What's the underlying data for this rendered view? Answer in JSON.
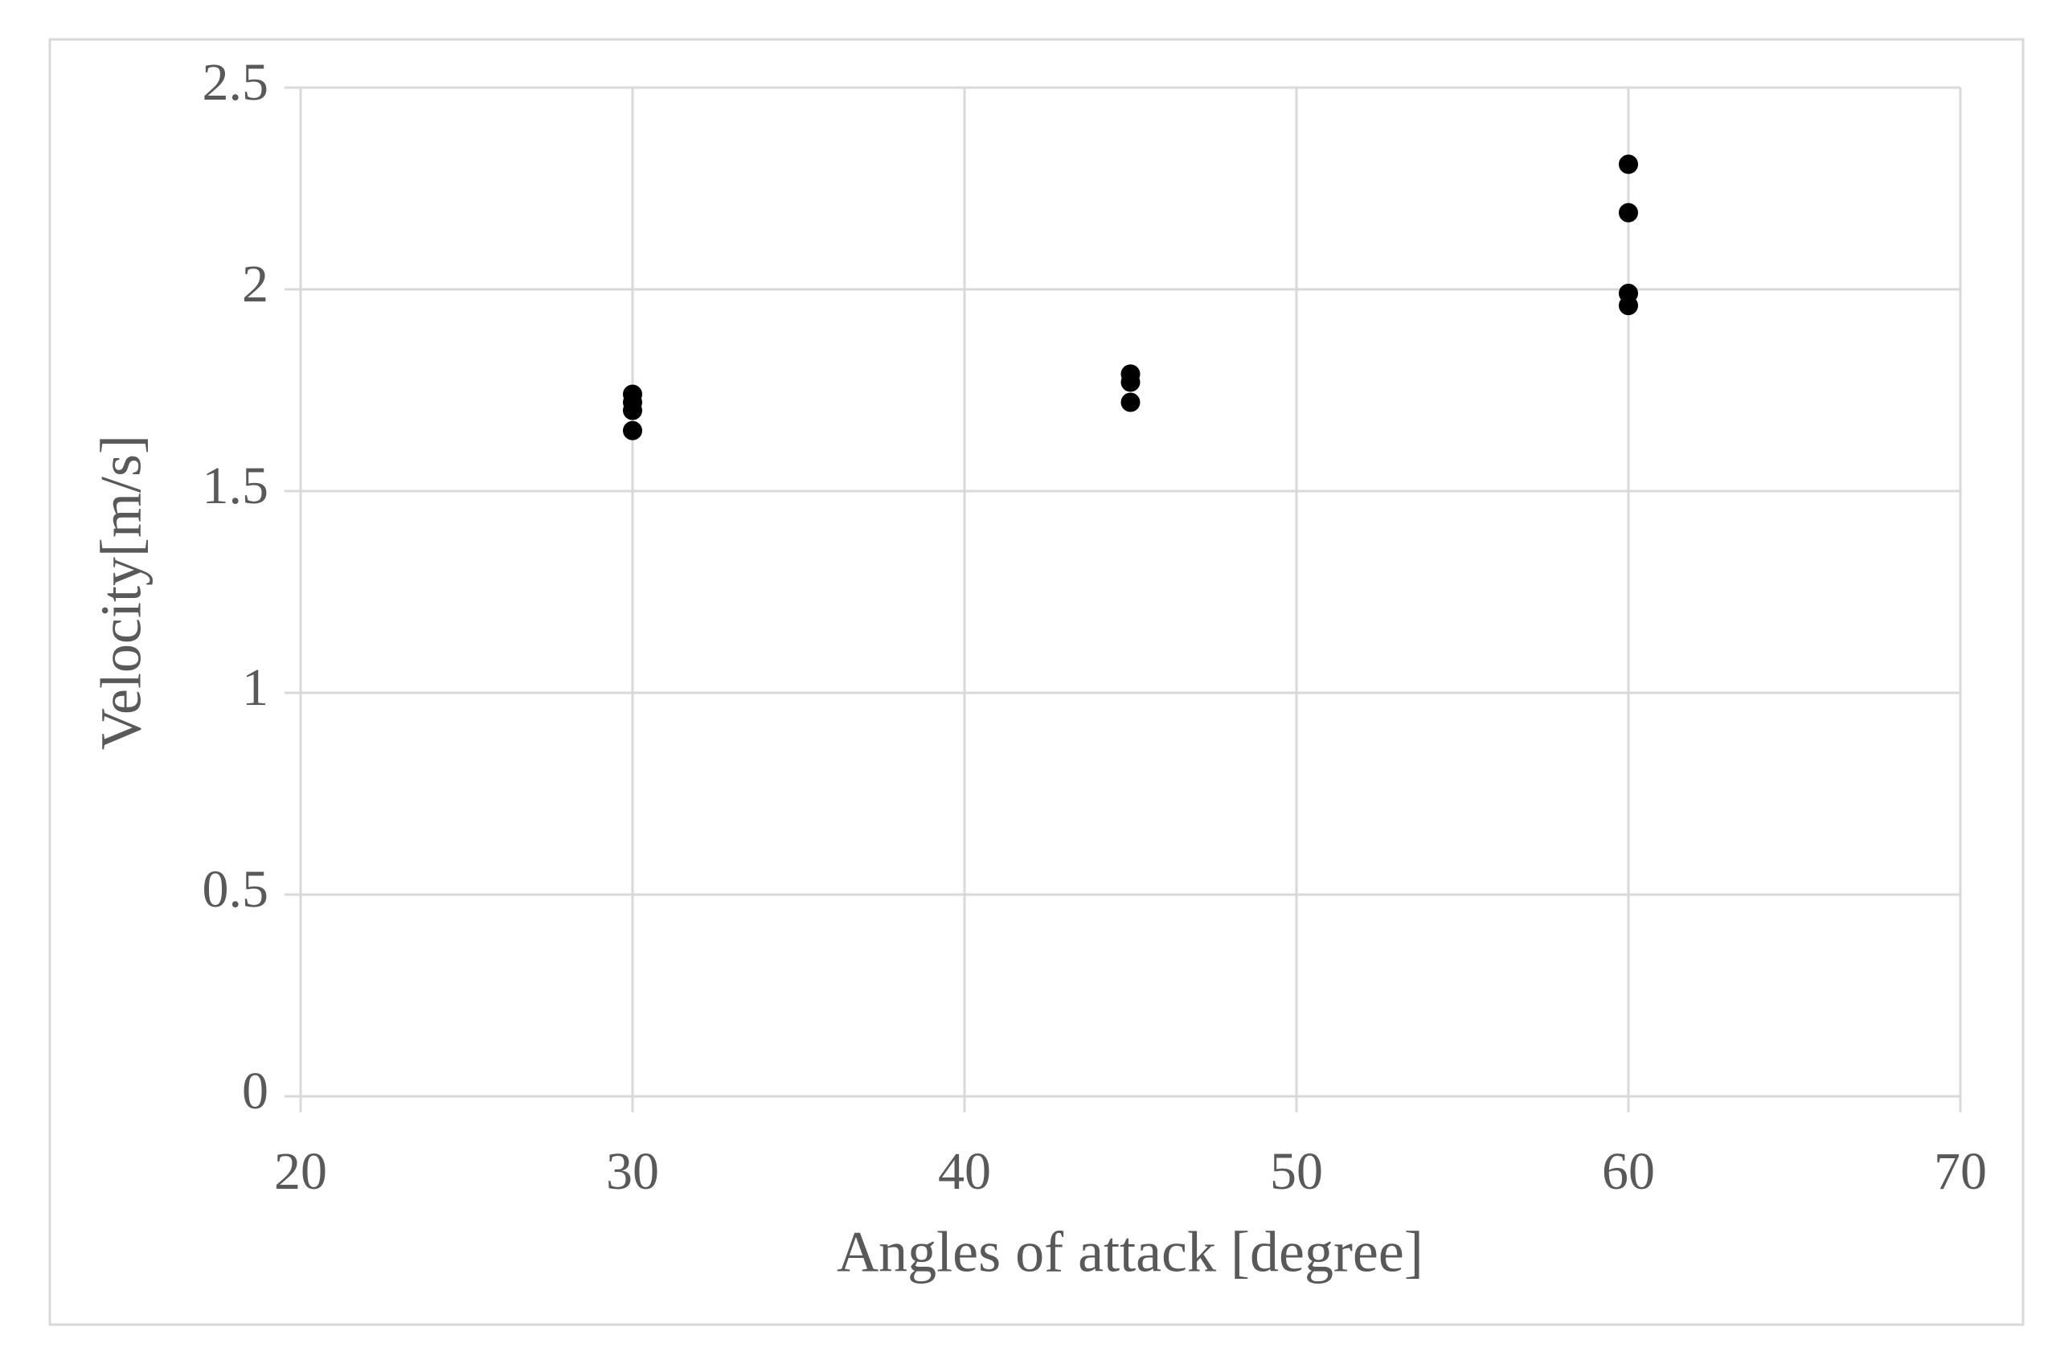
{
  "chart_data": {
    "type": "scatter",
    "xlabel": "Angles of attack [degree]",
    "ylabel": "Velocity[m/s]",
    "x": [
      30,
      30,
      30,
      30,
      45,
      45,
      45,
      60,
      60,
      60,
      60
    ],
    "values": [
      1.74,
      1.72,
      1.7,
      1.65,
      1.79,
      1.77,
      1.72,
      2.31,
      2.19,
      1.99,
      1.96
    ],
    "color": "#000000",
    "xlim": [
      20,
      70
    ],
    "xticks": [
      20,
      30,
      40,
      50,
      60,
      70
    ],
    "ylim": [
      0,
      2.5
    ],
    "yticks": [
      0,
      0.5,
      1,
      1.5,
      2,
      2.5
    ],
    "grid": true
  }
}
